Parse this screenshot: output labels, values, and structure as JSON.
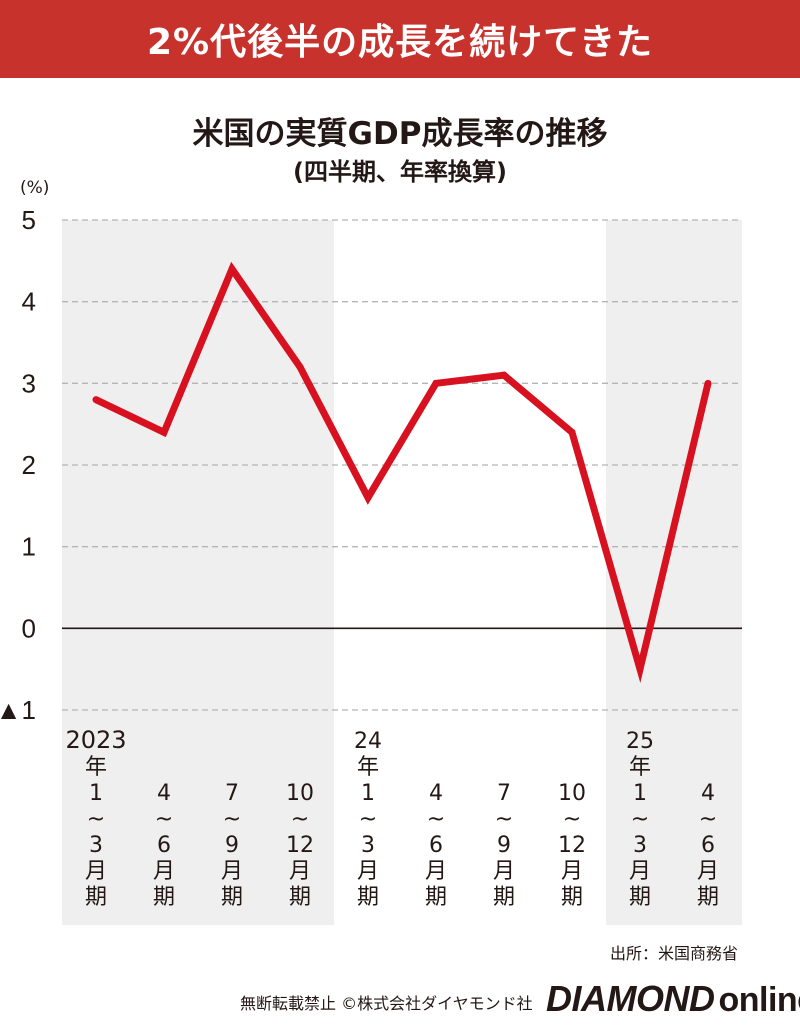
{
  "banner": {
    "headline": "2%代後半の成長を続けてきた"
  },
  "chart_data": {
    "type": "line",
    "title": "米国の実質GDP成長率の推移",
    "subtitle": "(四半期、年率換算)",
    "ylabel": "(%)",
    "xlabel": "",
    "ylim": [
      -1,
      5
    ],
    "yticks": [
      {
        "value": 5,
        "label": "5"
      },
      {
        "value": 4,
        "label": "4"
      },
      {
        "value": 3,
        "label": "3"
      },
      {
        "value": 2,
        "label": "2"
      },
      {
        "value": 1,
        "label": "1"
      },
      {
        "value": 0,
        "label": "0"
      },
      {
        "value": -1,
        "label": "▲1"
      }
    ],
    "grid": true,
    "categories": [
      [
        "2023",
        "年",
        "1",
        "~",
        "3",
        "月",
        "期"
      ],
      [
        "4",
        "~",
        "6",
        "月",
        "期"
      ],
      [
        "7",
        "~",
        "9",
        "月",
        "期"
      ],
      [
        "10",
        "~",
        "12",
        "月",
        "期"
      ],
      [
        "24",
        "年",
        "1",
        "~",
        "3",
        "月",
        "期"
      ],
      [
        "4",
        "~",
        "6",
        "月",
        "期"
      ],
      [
        "7",
        "~",
        "9",
        "月",
        "期"
      ],
      [
        "10",
        "~",
        "12",
        "月",
        "期"
      ],
      [
        "25",
        "年",
        "1",
        "~",
        "3",
        "月",
        "期"
      ],
      [
        "4",
        "~",
        "6",
        "月",
        "期"
      ]
    ],
    "shaded_ranges": [
      [
        0,
        3
      ],
      [
        8,
        9
      ]
    ],
    "series": [
      {
        "values": [
          2.8,
          2.4,
          4.4,
          3.2,
          1.6,
          3.0,
          3.1,
          2.4,
          -0.5,
          3.0
        ]
      }
    ],
    "colors": {
      "line": "#d7111f",
      "shade": "#efefef",
      "grid": "#b5b5b5",
      "axis": "#231815"
    }
  },
  "source": "出所：米国商務省",
  "footer": {
    "notice": "無断転載禁止 ©株式会社ダイヤモンド社",
    "brand_main": "DIAMOND",
    "brand_sub": "online"
  },
  "colors": {
    "banner_bg": "#c8322d",
    "banner_text": "#ffffff"
  }
}
